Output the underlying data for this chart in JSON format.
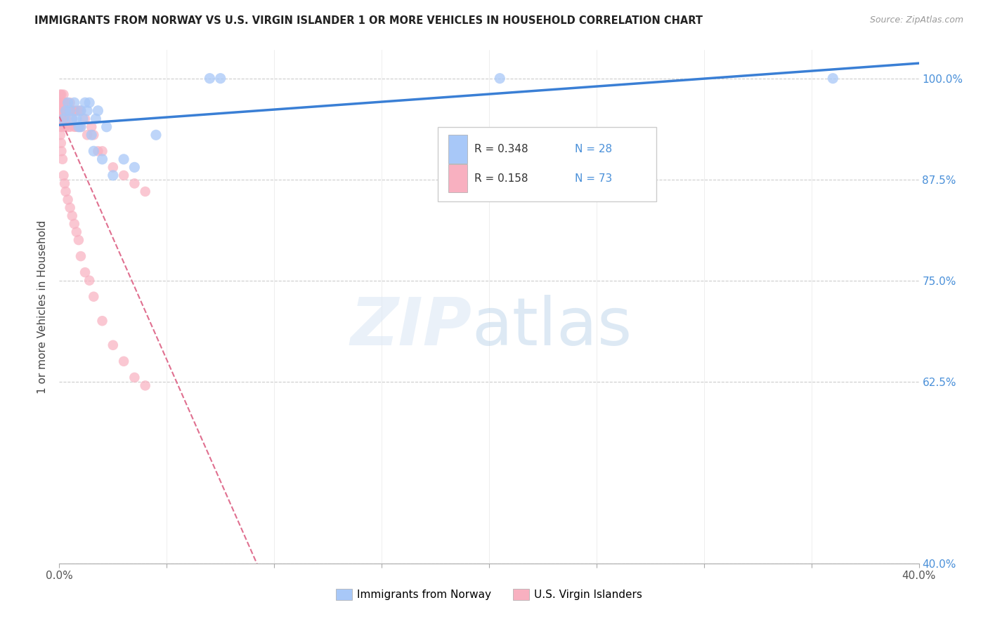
{
  "title": "IMMIGRANTS FROM NORWAY VS U.S. VIRGIN ISLANDER 1 OR MORE VEHICLES IN HOUSEHOLD CORRELATION CHART",
  "source": "Source: ZipAtlas.com",
  "ylabel": "1 or more Vehicles in Household",
  "yticks": [
    40.0,
    62.5,
    75.0,
    87.5,
    100.0
  ],
  "ytick_labels": [
    "40.0%",
    "62.5%",
    "75.0%",
    "87.5%",
    "100.0%"
  ],
  "xmin": 0.0,
  "xmax": 40.0,
  "ymin": 40.0,
  "ymax": 103.5,
  "legend_R1": "R = 0.348",
  "legend_N1": "N = 28",
  "legend_R2": "R = 0.158",
  "legend_N2": "N = 73",
  "legend_label1": "Immigrants from Norway",
  "legend_label2": "U.S. Virgin Islanders",
  "norway_color": "#a8c8f8",
  "vi_color": "#f8b0c0",
  "norway_trend_color": "#3a7fd5",
  "vi_trend_color": "#e07090",
  "norway_x": [
    0.2,
    0.3,
    0.4,
    0.5,
    0.6,
    0.7,
    0.8,
    0.9,
    1.0,
    1.0,
    1.1,
    1.2,
    1.3,
    1.4,
    1.5,
    1.6,
    1.7,
    1.8,
    2.0,
    2.2,
    2.5,
    3.0,
    3.5,
    4.5,
    7.0,
    7.5,
    20.5,
    36.0
  ],
  "norway_y": [
    95,
    96,
    97,
    96,
    95,
    97,
    95,
    94,
    96,
    94,
    95,
    97,
    96,
    97,
    93,
    91,
    95,
    96,
    90,
    94,
    88,
    90,
    89,
    93,
    100,
    100,
    100,
    100
  ],
  "vi_x": [
    0.05,
    0.05,
    0.05,
    0.05,
    0.08,
    0.08,
    0.08,
    0.08,
    0.1,
    0.1,
    0.1,
    0.1,
    0.1,
    0.15,
    0.15,
    0.15,
    0.2,
    0.2,
    0.2,
    0.2,
    0.25,
    0.25,
    0.25,
    0.3,
    0.3,
    0.3,
    0.4,
    0.4,
    0.5,
    0.5,
    0.5,
    0.6,
    0.6,
    0.7,
    0.7,
    0.8,
    0.8,
    0.9,
    0.9,
    1.0,
    1.0,
    1.2,
    1.3,
    1.5,
    1.6,
    1.8,
    2.0,
    2.5,
    3.0,
    3.5,
    4.0,
    0.05,
    0.08,
    0.1,
    0.15,
    0.2,
    0.25,
    0.3,
    0.4,
    0.5,
    0.6,
    0.7,
    0.8,
    0.9,
    1.0,
    1.2,
    1.4,
    1.6,
    2.0,
    2.5,
    3.0,
    3.5,
    4.0
  ],
  "vi_y": [
    98,
    97,
    96,
    95,
    97,
    96,
    95,
    94,
    98,
    97,
    96,
    95,
    94,
    97,
    96,
    95,
    98,
    97,
    96,
    95,
    97,
    96,
    94,
    97,
    96,
    95,
    96,
    94,
    97,
    96,
    94,
    96,
    95,
    96,
    94,
    96,
    94,
    96,
    94,
    96,
    94,
    95,
    93,
    94,
    93,
    91,
    91,
    89,
    88,
    87,
    86,
    93,
    92,
    91,
    90,
    88,
    87,
    86,
    85,
    84,
    83,
    82,
    81,
    80,
    78,
    76,
    75,
    73,
    70,
    67,
    65,
    63,
    62
  ]
}
